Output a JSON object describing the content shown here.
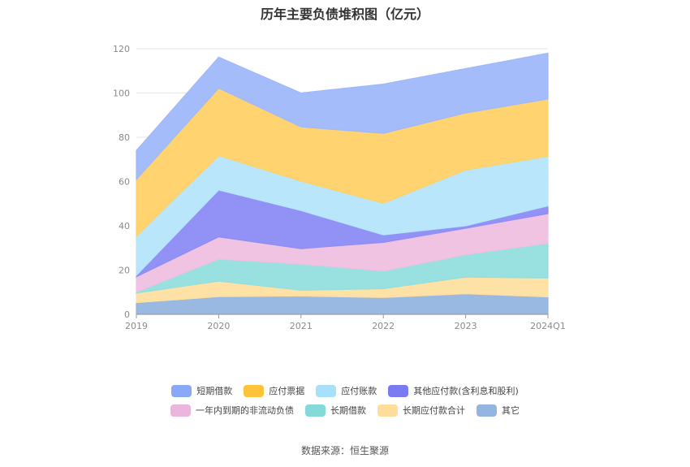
{
  "chart_data": {
    "type": "area",
    "stacked": true,
    "title": "历年主要负债堆积图（亿元）",
    "categories": [
      "2019",
      "2020",
      "2021",
      "2022",
      "2023",
      "2024Q1"
    ],
    "ylim": [
      0,
      120
    ],
    "yticks": [
      0,
      20,
      40,
      60,
      80,
      100,
      120
    ],
    "grid": true,
    "legend_position": "bottom",
    "series": [
      {
        "name": "其它",
        "color": "#93b5e0",
        "values": [
          5.3,
          8.0,
          8.3,
          7.6,
          9.3,
          7.9
        ]
      },
      {
        "name": "长期应付款合计",
        "color": "#fedf9f",
        "values": [
          4.3,
          7.0,
          2.6,
          4.0,
          7.5,
          8.5
        ]
      },
      {
        "name": "长期借款",
        "color": "#93dede",
        "values": [
          0.5,
          10.0,
          11.8,
          8.0,
          10.2,
          15.7
        ]
      },
      {
        "name": "一年内到期的非流动负债",
        "color": "#f0c0e0",
        "values": [
          6.9,
          10.0,
          7.0,
          12.9,
          11.9,
          13.4
        ]
      },
      {
        "name": "其他应付款(含利息和股利)",
        "color": "#8c8cf5",
        "values": [
          0.6,
          21.2,
          17.2,
          3.4,
          1.1,
          3.5
        ]
      },
      {
        "name": "应付账款",
        "color": "#b5e5fb",
        "values": [
          17.7,
          15.5,
          13.3,
          14.3,
          25.2,
          22.4
        ]
      },
      {
        "name": "应付票据",
        "color": "#fed168",
        "values": [
          25.7,
          30.5,
          24.5,
          31.6,
          25.8,
          25.9
        ]
      },
      {
        "name": "短期借款",
        "color": "#a0b8fb",
        "values": [
          13.0,
          14.0,
          15.3,
          22.2,
          20.0,
          20.7
        ]
      }
    ]
  },
  "legend": {
    "rows": [
      [
        {
          "label": "短期借款",
          "color": "#8aa8f8"
        },
        {
          "label": "应付票据",
          "color": "#fdc43b"
        },
        {
          "label": "应付账款",
          "color": "#a6e0fb"
        },
        {
          "label": "其他应付款(含利息和股利)",
          "color": "#7a7af2"
        }
      ],
      [
        {
          "label": "一年内到期的非流动负债",
          "color": "#ebb6dd"
        },
        {
          "label": "长期借款",
          "color": "#86d9d9"
        },
        {
          "label": "长期应付款合计",
          "color": "#fedd9a"
        },
        {
          "label": "其它",
          "color": "#93b5e0"
        }
      ]
    ]
  },
  "source": "数据来源：恒生聚源"
}
